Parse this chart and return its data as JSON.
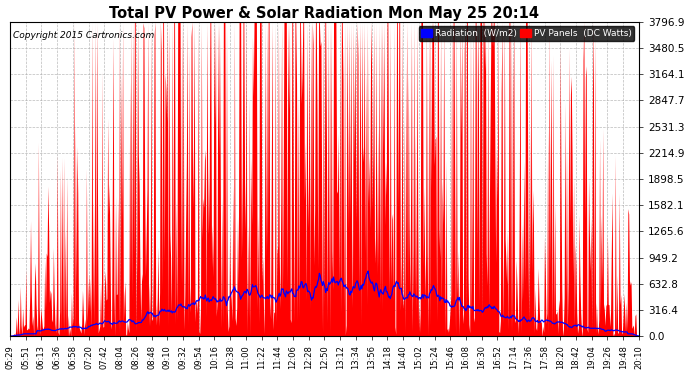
{
  "title": "Total PV Power & Solar Radiation Mon May 25 20:14",
  "copyright": "Copyright 2015 Cartronics.com",
  "background_color": "#ffffff",
  "plot_bg_color": "#ffffff",
  "grid_color": "#aaaaaa",
  "ylim": [
    0.0,
    3796.9
  ],
  "yticks": [
    0.0,
    316.4,
    632.8,
    949.2,
    1265.6,
    1582.1,
    1898.5,
    2214.9,
    2531.3,
    2847.7,
    3164.1,
    3480.5,
    3796.9
  ],
  "legend_radiation_color": "#0000ff",
  "legend_pv_color": "#ff0000",
  "legend_radiation_label": "Radiation  (W/m2)",
  "legend_pv_label": "PV Panels  (DC Watts)",
  "red_fill_color": "#ff0000",
  "blue_line_color": "#0000ff",
  "x_tick_labels": [
    "05:29",
    "05:51",
    "06:13",
    "06:36",
    "06:58",
    "07:20",
    "07:42",
    "08:04",
    "08:26",
    "08:48",
    "09:10",
    "09:32",
    "09:54",
    "10:16",
    "10:38",
    "11:00",
    "11:22",
    "11:44",
    "12:06",
    "12:28",
    "12:50",
    "13:12",
    "13:34",
    "13:56",
    "14:18",
    "14:40",
    "15:02",
    "15:24",
    "15:46",
    "16:08",
    "16:30",
    "16:52",
    "17:14",
    "17:36",
    "17:58",
    "18:20",
    "18:42",
    "19:04",
    "19:26",
    "19:48",
    "20:10"
  ]
}
